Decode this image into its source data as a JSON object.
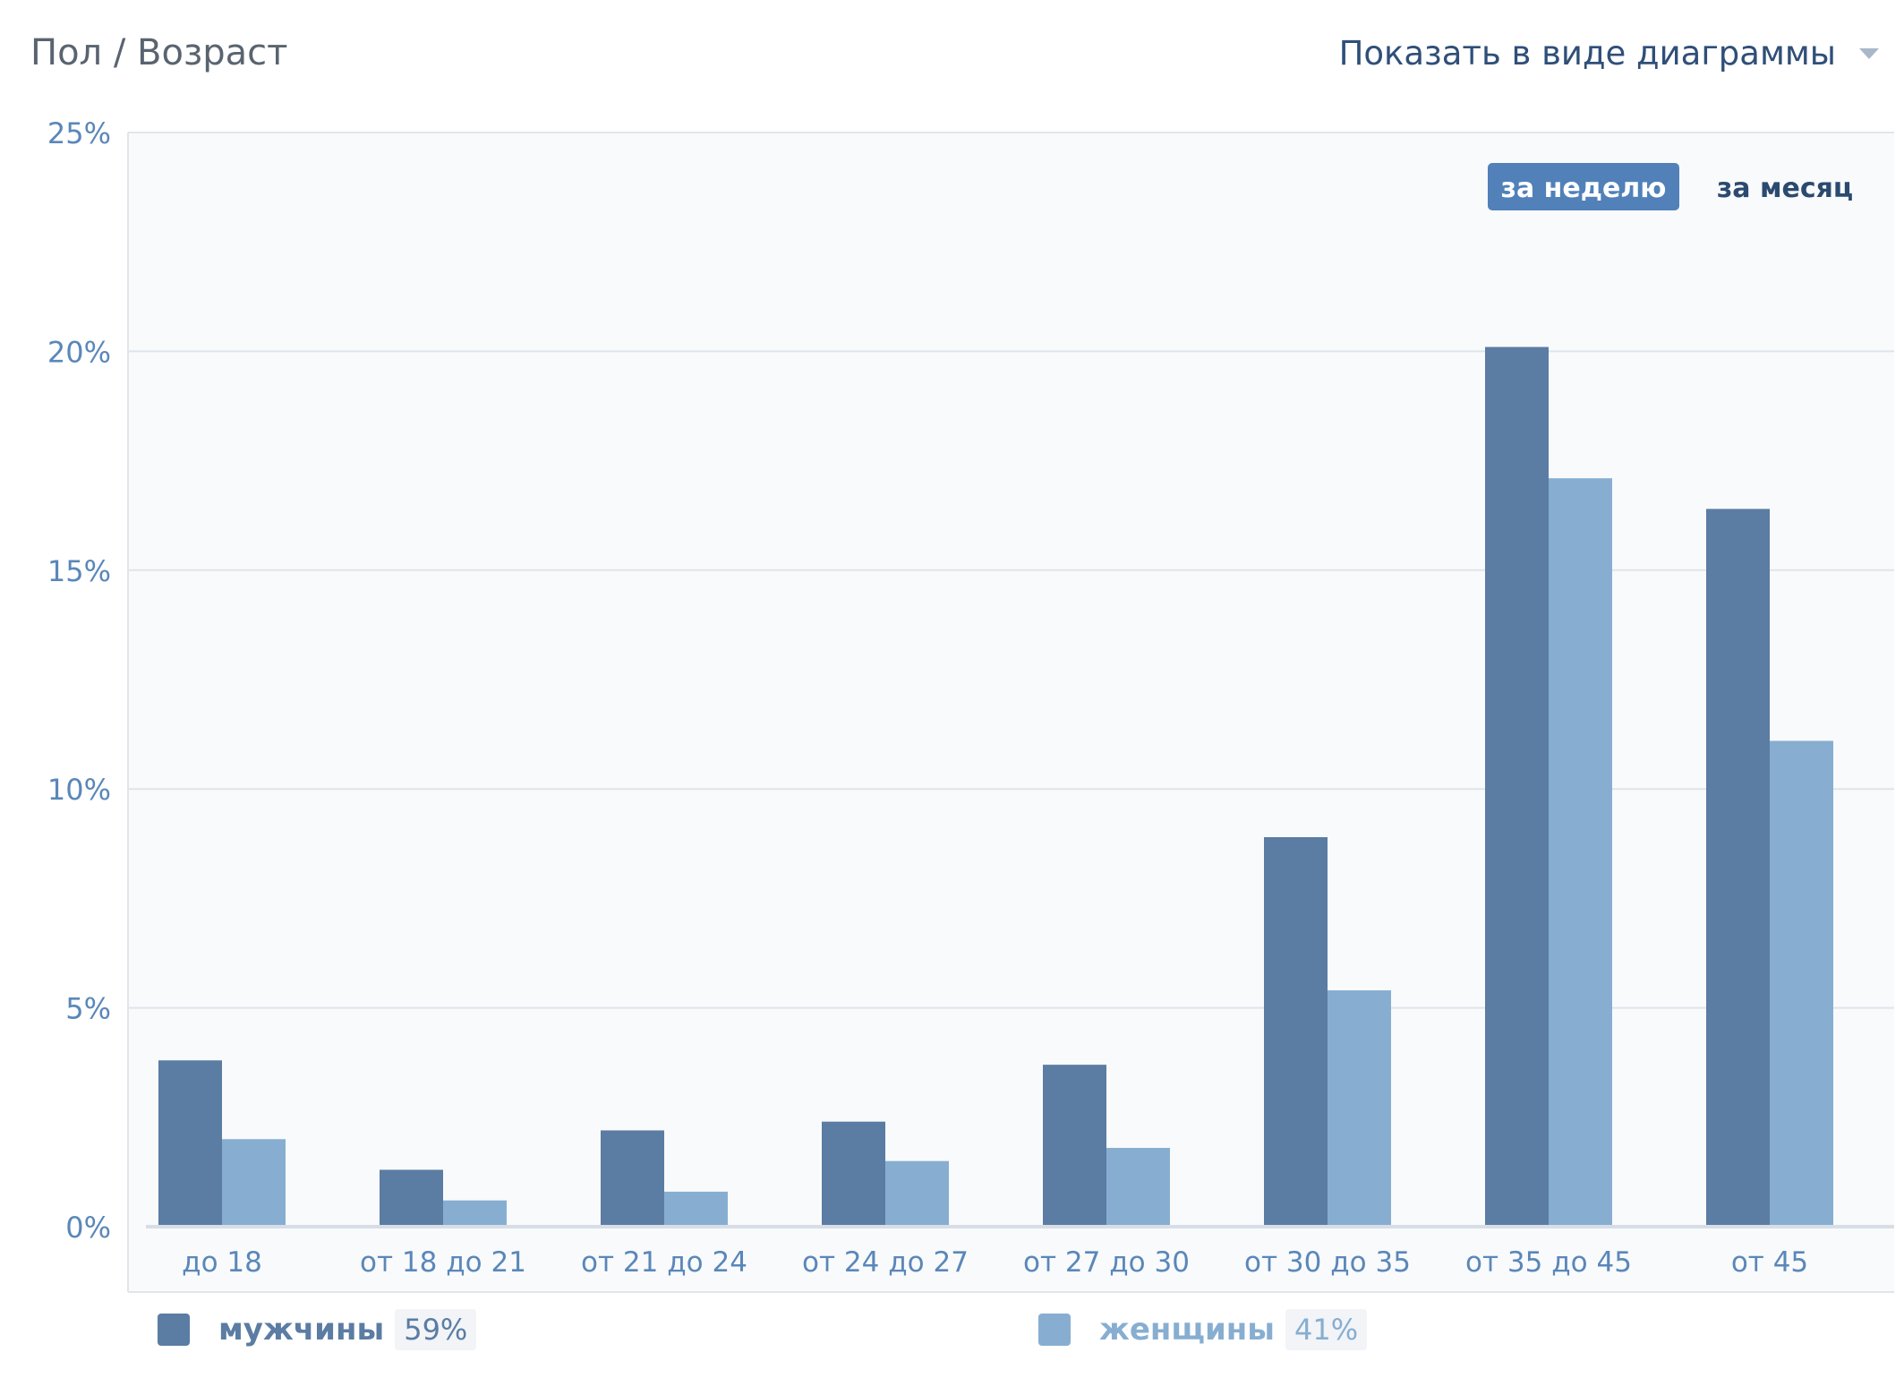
{
  "header": {
    "title": "Пол / Возраст",
    "view_select_label": "Показать в виде диаграммы"
  },
  "period_tabs": [
    {
      "label": "за неделю",
      "active": true
    },
    {
      "label": "за месяц",
      "active": false
    }
  ],
  "colors": {
    "male": "#5b7ca3",
    "female": "#87aed1",
    "axis_text": "#5a87b9",
    "grid": "#dfe5ec",
    "plot_bg": "#f9fafc",
    "tab_active_bg": "#5181b8",
    "tab_text": "#2b4a6f"
  },
  "chart_data": {
    "type": "bar",
    "categories": [
      "до 18",
      "от 18 до 21",
      "от 21 до 24",
      "от 24 до 27",
      "от 27 до 30",
      "от 30 до 35",
      "от 35 до 45",
      "от 45"
    ],
    "series": [
      {
        "name": "мужчины",
        "values": [
          3.8,
          1.3,
          2.2,
          2.4,
          3.7,
          8.9,
          20.1,
          16.4
        ]
      },
      {
        "name": "женщины",
        "values": [
          2.0,
          0.6,
          0.8,
          1.5,
          1.8,
          5.4,
          17.1,
          11.1
        ]
      }
    ],
    "y_ticks": [
      "0%",
      "5%",
      "10%",
      "15%",
      "20%",
      "25%"
    ],
    "ylim": [
      0,
      25
    ],
    "grid": true,
    "legend_position": "bottom"
  },
  "legend": [
    {
      "name": "мужчины",
      "percent": "59%"
    },
    {
      "name": "женщины",
      "percent": "41%"
    }
  ]
}
